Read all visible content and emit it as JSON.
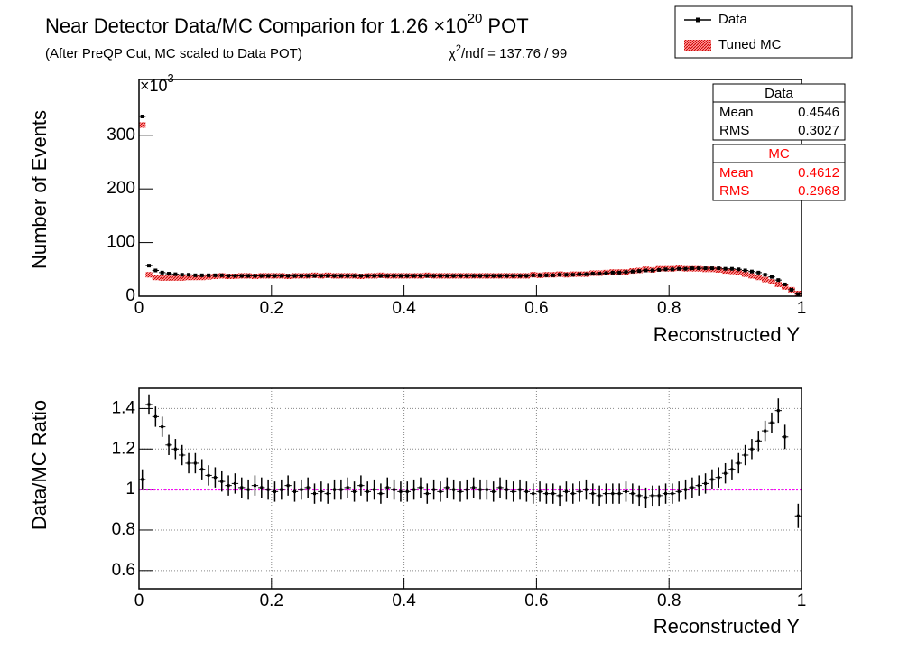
{
  "chart_data": [
    {
      "type": "histogram",
      "title": "Near Detector Data/MC Comparion for 1.26 ×10",
      "title_exponent": "20",
      "title_suffix": "POT",
      "subtitle": "(After PreQP Cut, MC scaled to Data POT)",
      "chi2_symbol": "χ",
      "chi2_exponent": "2",
      "chi2_text": "/ndf = 137.76 / 99",
      "xlabel": "Reconstructed Y",
      "ylabel": "Number of Events",
      "y_multiplier": "×10",
      "y_multiplier_exponent": "3",
      "xlim": [
        0,
        1
      ],
      "ylim": [
        0,
        404
      ],
      "xticks": [
        0,
        0.2,
        0.4,
        0.6,
        0.8,
        1
      ],
      "yticks": [
        0,
        100,
        200,
        300
      ],
      "grid": false,
      "legend": "top-right",
      "x": [
        0.005,
        0.015,
        0.025,
        0.035,
        0.045,
        0.055,
        0.065,
        0.075,
        0.085,
        0.095,
        0.105,
        0.115,
        0.125,
        0.135,
        0.145,
        0.155,
        0.165,
        0.175,
        0.185,
        0.195,
        0.205,
        0.215,
        0.225,
        0.235,
        0.245,
        0.255,
        0.265,
        0.275,
        0.285,
        0.295,
        0.305,
        0.315,
        0.325,
        0.335,
        0.345,
        0.355,
        0.365,
        0.375,
        0.385,
        0.395,
        0.405,
        0.415,
        0.425,
        0.435,
        0.445,
        0.455,
        0.465,
        0.475,
        0.485,
        0.495,
        0.505,
        0.515,
        0.525,
        0.535,
        0.545,
        0.555,
        0.565,
        0.575,
        0.585,
        0.595,
        0.605,
        0.615,
        0.625,
        0.635,
        0.645,
        0.655,
        0.665,
        0.675,
        0.685,
        0.695,
        0.705,
        0.715,
        0.725,
        0.735,
        0.745,
        0.755,
        0.765,
        0.775,
        0.785,
        0.795,
        0.805,
        0.815,
        0.825,
        0.835,
        0.845,
        0.855,
        0.865,
        0.875,
        0.885,
        0.895,
        0.905,
        0.915,
        0.925,
        0.935,
        0.945,
        0.955,
        0.965,
        0.975,
        0.985,
        0.995
      ],
      "series": [
        {
          "name": "Data",
          "color": "#000000",
          "style": "points",
          "values": [
            335,
            57,
            48,
            44,
            42,
            41,
            40,
            40,
            39,
            39,
            39,
            39,
            39,
            38,
            38,
            38,
            38,
            38,
            38,
            38,
            38,
            38,
            38,
            38,
            38,
            38,
            38,
            38,
            38,
            38,
            38,
            38,
            38,
            38,
            38,
            38,
            38,
            38,
            38,
            38,
            38,
            38,
            38,
            38,
            38,
            38,
            38,
            38,
            38,
            38,
            38,
            38,
            38,
            38,
            38,
            38,
            38,
            38,
            38,
            39,
            39,
            39,
            39,
            40,
            40,
            40,
            41,
            41,
            42,
            42,
            43,
            44,
            44,
            45,
            46,
            47,
            48,
            48,
            49,
            50,
            50,
            51,
            51,
            52,
            52,
            52,
            52,
            52,
            51,
            51,
            50,
            48,
            46,
            44,
            40,
            36,
            30,
            22,
            12,
            4
          ]
        },
        {
          "name": "Tuned MC",
          "color": "#ff0000",
          "style": "box",
          "values": [
            319,
            40,
            35,
            34,
            34,
            34,
            34,
            35,
            35,
            35,
            36,
            37,
            38,
            37,
            37,
            38,
            38,
            37,
            38,
            38,
            38,
            38,
            37,
            38,
            38,
            38,
            39,
            38,
            39,
            38,
            38,
            38,
            38,
            37,
            38,
            38,
            39,
            38,
            38,
            38,
            38,
            38,
            38,
            39,
            38,
            38,
            38,
            38,
            38,
            38,
            38,
            38,
            38,
            38,
            38,
            38,
            38,
            38,
            38,
            40,
            39,
            40,
            40,
            41,
            40,
            41,
            41,
            41,
            43,
            43,
            44,
            45,
            45,
            45,
            47,
            48,
            50,
            49,
            51,
            51,
            51,
            52,
            51,
            51,
            51,
            50,
            50,
            49,
            47,
            46,
            44,
            41,
            38,
            35,
            31,
            27,
            22,
            17,
            12,
            5
          ]
        }
      ],
      "stats": [
        {
          "title": "Data",
          "color": "#000000",
          "rows": [
            {
              "label": "Mean",
              "value": 0.4546
            },
            {
              "label": "RMS",
              "value": 0.3027
            }
          ]
        },
        {
          "title": "MC",
          "color": "#ff0000",
          "rows": [
            {
              "label": "Mean",
              "value": 0.4612
            },
            {
              "label": "RMS",
              "value": 0.2968
            }
          ]
        }
      ]
    },
    {
      "type": "errorbar",
      "xlabel": "Reconstructed Y",
      "ylabel": "Data/MC Ratio",
      "xlim": [
        0,
        1
      ],
      "ylim": [
        0.51,
        1.5
      ],
      "xticks": [
        0,
        0.2,
        0.4,
        0.6,
        0.8,
        1
      ],
      "yticks": [
        0.6,
        0.8,
        1,
        1.2,
        1.4
      ],
      "grid": true,
      "hline": {
        "value": 1,
        "color": "#ff00ff"
      },
      "x": [
        0.005,
        0.015,
        0.025,
        0.035,
        0.045,
        0.055,
        0.065,
        0.075,
        0.085,
        0.095,
        0.105,
        0.115,
        0.125,
        0.135,
        0.145,
        0.155,
        0.165,
        0.175,
        0.185,
        0.195,
        0.205,
        0.215,
        0.225,
        0.235,
        0.245,
        0.255,
        0.265,
        0.275,
        0.285,
        0.295,
        0.305,
        0.315,
        0.325,
        0.335,
        0.345,
        0.355,
        0.365,
        0.375,
        0.385,
        0.395,
        0.405,
        0.415,
        0.425,
        0.435,
        0.445,
        0.455,
        0.465,
        0.475,
        0.485,
        0.495,
        0.505,
        0.515,
        0.525,
        0.535,
        0.545,
        0.555,
        0.565,
        0.575,
        0.585,
        0.595,
        0.605,
        0.615,
        0.625,
        0.635,
        0.645,
        0.655,
        0.665,
        0.675,
        0.685,
        0.695,
        0.705,
        0.715,
        0.725,
        0.735,
        0.745,
        0.755,
        0.765,
        0.775,
        0.785,
        0.795,
        0.805,
        0.815,
        0.825,
        0.835,
        0.845,
        0.855,
        0.865,
        0.875,
        0.885,
        0.895,
        0.905,
        0.915,
        0.925,
        0.935,
        0.945,
        0.955,
        0.965,
        0.975,
        0.985,
        0.995
      ],
      "series": [
        {
          "color": "#000000",
          "values": [
            1.05,
            1.42,
            1.36,
            1.31,
            1.22,
            1.2,
            1.17,
            1.13,
            1.13,
            1.1,
            1.07,
            1.06,
            1.04,
            1.02,
            1.03,
            1.01,
            1.0,
            1.02,
            1.01,
            1.0,
            0.99,
            1.0,
            1.02,
            0.99,
            1.0,
            1.01,
            0.98,
            0.99,
            0.98,
            1.0,
            1.0,
            1.01,
            0.99,
            1.02,
            0.99,
            1.0,
            0.98,
            1.01,
            1.0,
            0.99,
            0.99,
            1.0,
            1.01,
            0.98,
            1.0,
            0.99,
            1.01,
            1.0,
            0.99,
            1.0,
            1.01,
            1.0,
            1.0,
            0.99,
            1.01,
            1.0,
            0.99,
            1.0,
            0.99,
            0.98,
            0.99,
            0.98,
            0.98,
            0.97,
            0.99,
            0.98,
            0.99,
            1.0,
            0.98,
            0.97,
            0.98,
            0.98,
            0.98,
            0.99,
            0.98,
            0.97,
            0.96,
            0.97,
            0.97,
            0.98,
            0.98,
            0.99,
            1.0,
            1.01,
            1.02,
            1.03,
            1.05,
            1.06,
            1.08,
            1.1,
            1.13,
            1.17,
            1.2,
            1.24,
            1.29,
            1.33,
            1.39,
            1.26,
            null,
            0.87
          ],
          "errors": [
            0.05,
            0.05,
            0.05,
            0.05,
            0.05,
            0.05,
            0.05,
            0.05,
            0.05,
            0.05,
            0.05,
            0.05,
            0.05,
            0.05,
            0.05,
            0.05,
            0.05,
            0.05,
            0.05,
            0.05,
            0.05,
            0.05,
            0.05,
            0.05,
            0.05,
            0.05,
            0.05,
            0.05,
            0.05,
            0.05,
            0.05,
            0.05,
            0.05,
            0.05,
            0.05,
            0.05,
            0.05,
            0.05,
            0.05,
            0.05,
            0.05,
            0.05,
            0.05,
            0.05,
            0.05,
            0.05,
            0.05,
            0.05,
            0.05,
            0.05,
            0.05,
            0.05,
            0.05,
            0.05,
            0.05,
            0.05,
            0.05,
            0.05,
            0.05,
            0.05,
            0.05,
            0.05,
            0.05,
            0.05,
            0.05,
            0.05,
            0.05,
            0.05,
            0.05,
            0.05,
            0.05,
            0.05,
            0.05,
            0.05,
            0.05,
            0.05,
            0.05,
            0.05,
            0.05,
            0.05,
            0.05,
            0.05,
            0.05,
            0.05,
            0.05,
            0.05,
            0.05,
            0.05,
            0.05,
            0.05,
            0.05,
            0.05,
            0.05,
            0.05,
            0.05,
            0.05,
            0.06,
            0.06,
            null,
            0.06
          ]
        }
      ]
    }
  ]
}
